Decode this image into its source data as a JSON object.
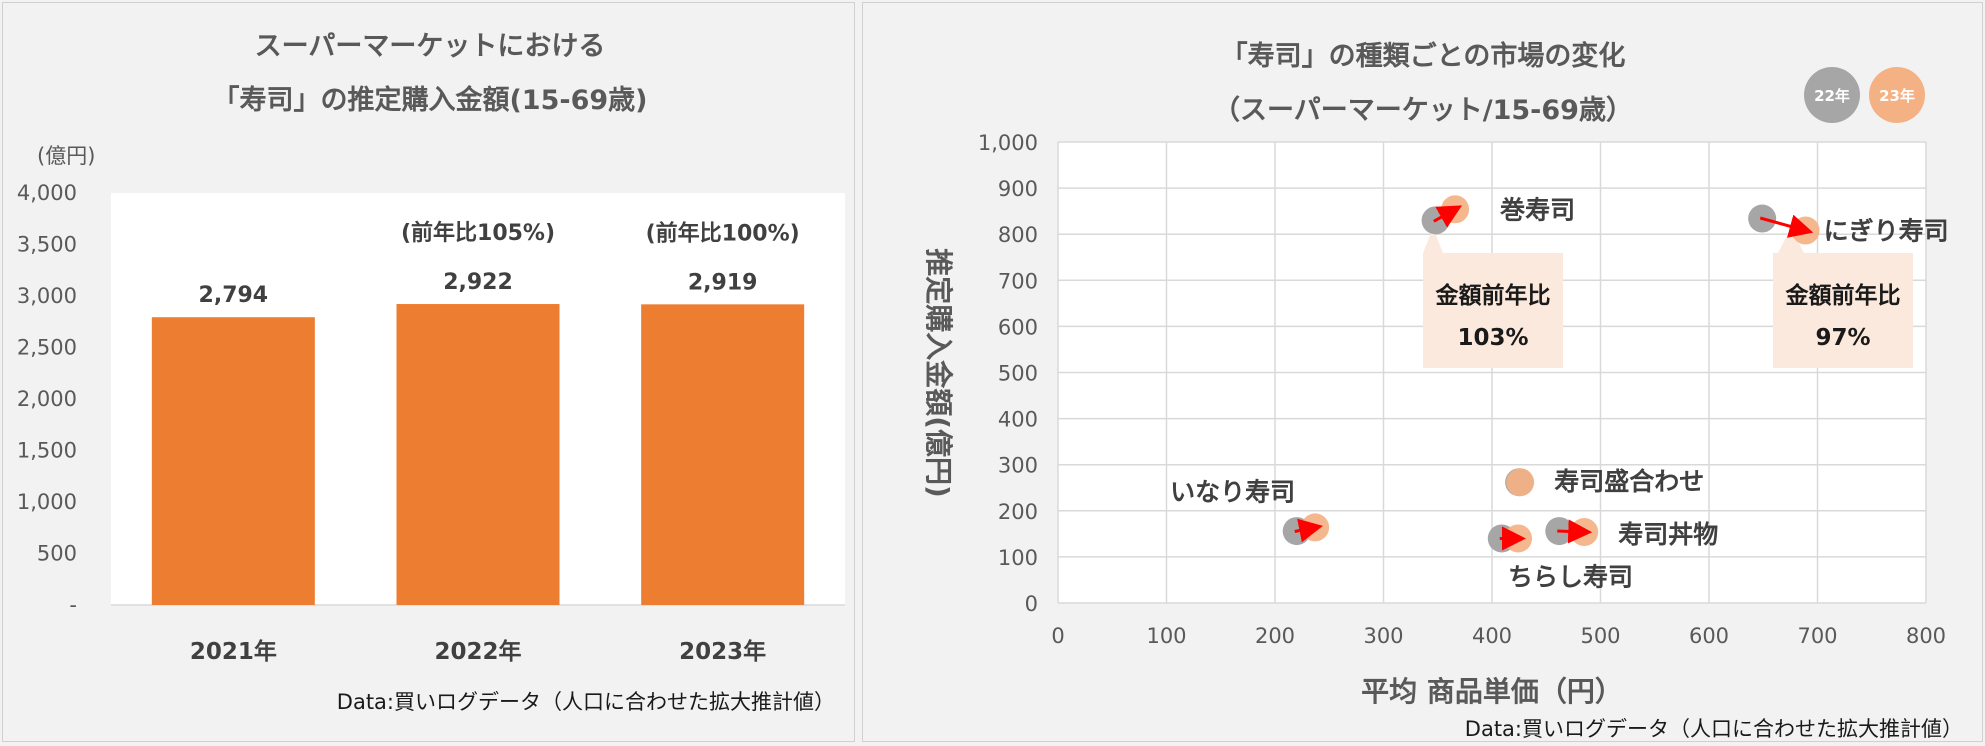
{
  "colors": {
    "bar": "#ED7D31",
    "prev_year": "#A6A6A6",
    "curr_year": "#F4B183",
    "arrow": "#FF0000",
    "callout": "#FCE9DD"
  },
  "left": {
    "title_line1": "スーパーマーケットにおける",
    "title_line2": "「寿司」の推定購入金額(15-69歳)",
    "y_unit": "(億円)",
    "source": "Data:買いログデータ（人口に合わせた拡大推計値）",
    "chart_data": {
      "type": "bar",
      "categories": [
        "2021年",
        "2022年",
        "2023年"
      ],
      "values": [
        2794,
        2922,
        2919
      ],
      "value_labels": [
        "2,794",
        "2,922",
        "2,919"
      ],
      "yoy_labels": [
        "",
        "(前年比105%)",
        "(前年比100%)"
      ],
      "ylim": [
        0,
        4000
      ],
      "yticks": [
        "-",
        "500",
        "1,000",
        "1,500",
        "2,000",
        "2,500",
        "3,000",
        "3,500",
        "4,000"
      ],
      "ylabel": "(億円)",
      "grid": false
    }
  },
  "right": {
    "title_line1": "「寿司」の種類ごとの市場の変化",
    "title_line2": "（スーパーマーケット/15-69歳）",
    "legend": [
      "22年",
      "23年"
    ],
    "source": "Data:買いログデータ（人口に合わせた拡大推計値）",
    "callouts": [
      {
        "line1": "金額前年比",
        "line2": "103%"
      },
      {
        "line1": "金額前年比",
        "line2": "97%"
      }
    ],
    "chart_data": {
      "type": "scatter",
      "xlabel": "平均 商品単価（円）",
      "ylabel": "推定購入金額(億円)",
      "xlim": [
        0,
        800
      ],
      "ylim": [
        0,
        1000
      ],
      "xticks": [
        "0",
        "100",
        "200",
        "300",
        "400",
        "500",
        "600",
        "700",
        "800"
      ],
      "yticks": [
        "0",
        "100",
        "200",
        "300",
        "400",
        "500",
        "600",
        "700",
        "800",
        "900",
        "1,000"
      ],
      "grid": true,
      "legend_position": "top-right",
      "points": [
        {
          "name": "巻寿司",
          "x22": 348,
          "y22": 830,
          "x23": 366,
          "y23": 854
        },
        {
          "name": "にぎり寿司",
          "x22": 649,
          "y22": 834,
          "x23": 689,
          "y23": 808
        },
        {
          "name": "いなり寿司",
          "x22": 220,
          "y22": 156,
          "x23": 237,
          "y23": 164
        },
        {
          "name": "寿司盛合わせ",
          "x22": 425,
          "y22": 262,
          "x23": 426,
          "y23": 262
        },
        {
          "name": "寿司丼物",
          "x22": 462,
          "y22": 156,
          "x23": 485,
          "y23": 154
        },
        {
          "name": "ちらし寿司",
          "x22": 409,
          "y22": 140,
          "x23": 424,
          "y23": 140
        }
      ]
    }
  }
}
